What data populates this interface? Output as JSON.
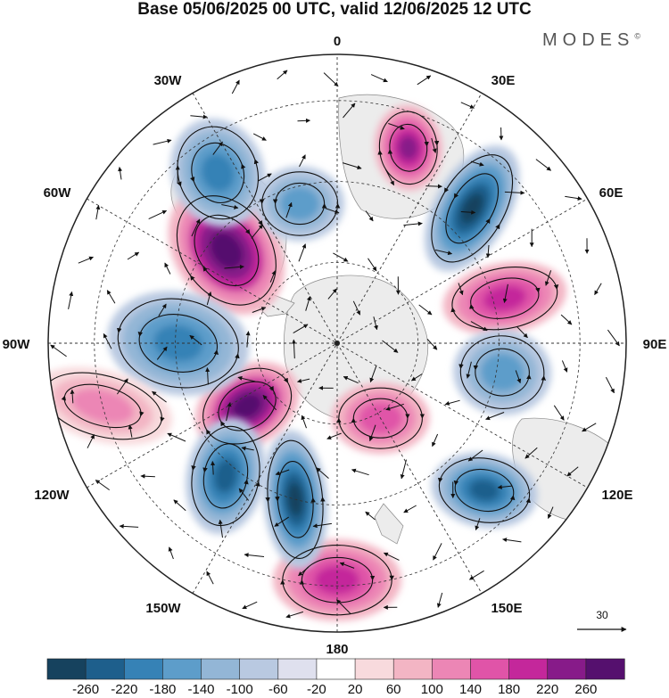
{
  "title": "Base 05/06/2025 00 UTC, valid 12/06/2025 12 UTC",
  "brand": "MODES",
  "brand_mark": "©",
  "longitude_labels": {
    "lon_0": "0",
    "lon_30e": "30E",
    "lon_60e": "60E",
    "lon_90e": "90E",
    "lon_120e": "120E",
    "lon_150e": "150E",
    "lon_180": "180",
    "lon_150w": "150W",
    "lon_120w": "120W",
    "lon_90w": "90W",
    "lon_60w": "60W",
    "lon_30w": "30W"
  },
  "vector_scale_label": "30",
  "colorbar": {
    "ticks": [
      "-260",
      "-220",
      "-180",
      "-140",
      "-100",
      "-60",
      "-20",
      "20",
      "60",
      "100",
      "140",
      "180",
      "220",
      "260"
    ],
    "colors": [
      "#16425e",
      "#1e5f8c",
      "#3682b6",
      "#5d9dca",
      "#93b6d6",
      "#b9c9e1",
      "#dfe0ee",
      "#ffffff",
      "#f8dadd",
      "#f3b5c4",
      "#ec86b5",
      "#e054a8",
      "#c4279b",
      "#871b89",
      "#55106e"
    ]
  },
  "anomaly_centers": [
    {
      "type": "high",
      "lon": -50,
      "level": 260,
      "colors": [
        "#f3b5c4",
        "#ec86b5",
        "#c4279b",
        "#871b89",
        "#55106e"
      ]
    },
    {
      "type": "low",
      "lon": -15,
      "level": -140,
      "colors": [
        "#b9c9e1",
        "#93b6d6",
        "#5d9dca"
      ]
    },
    {
      "type": "low",
      "lon": -35,
      "level": -180,
      "colors": [
        "#b9c9e1",
        "#93b6d6",
        "#5d9dca",
        "#3682b6"
      ]
    },
    {
      "type": "high",
      "lon": 20,
      "level": 220,
      "colors": [
        "#f3b5c4",
        "#ec86b5",
        "#e054a8",
        "#c4279b",
        "#871b89"
      ]
    },
    {
      "type": "low",
      "lon": 45,
      "level": -260,
      "colors": [
        "#b9c9e1",
        "#93b6d6",
        "#5d9dca",
        "#3682b6",
        "#1e5f8c",
        "#16425e"
      ]
    },
    {
      "type": "high",
      "lon": 75,
      "level": 220,
      "colors": [
        "#f3b5c4",
        "#ec86b5",
        "#e054a8",
        "#c4279b"
      ]
    },
    {
      "type": "low",
      "lon": 100,
      "level": -140,
      "colors": [
        "#b9c9e1",
        "#93b6d6",
        "#5d9dca"
      ]
    },
    {
      "type": "high",
      "lon": 150,
      "level": 180,
      "colors": [
        "#f3b5c4",
        "#ec86b5",
        "#e054a8"
      ]
    },
    {
      "type": "low",
      "lon": 135,
      "level": -220,
      "colors": [
        "#b9c9e1",
        "#93b6d6",
        "#5d9dca",
        "#3682b6",
        "#1e5f8c"
      ]
    },
    {
      "type": "high",
      "lon": 180,
      "level": 220,
      "colors": [
        "#f3b5c4",
        "#ec86b5",
        "#e054a8",
        "#c4279b"
      ]
    },
    {
      "type": "low",
      "lon": -165,
      "level": -260,
      "colors": [
        "#b9c9e1",
        "#93b6d6",
        "#5d9dca",
        "#3682b6",
        "#1e5f8c",
        "#16425e"
      ]
    },
    {
      "type": "high",
      "lon": -125,
      "level": 260,
      "colors": [
        "#f3b5c4",
        "#ec86b5",
        "#c4279b",
        "#871b89",
        "#55106e"
      ]
    },
    {
      "type": "low",
      "lon": -140,
      "level": -220,
      "colors": [
        "#b9c9e1",
        "#93b6d6",
        "#5d9dca",
        "#3682b6",
        "#1e5f8c"
      ]
    },
    {
      "type": "low",
      "lon": -90,
      "level": -180,
      "colors": [
        "#b9c9e1",
        "#93b6d6",
        "#5d9dca",
        "#3682b6"
      ]
    },
    {
      "type": "high",
      "lon": -105,
      "level": 140,
      "colors": [
        "#f8dadd",
        "#f3b5c4",
        "#ec86b5"
      ]
    }
  ]
}
